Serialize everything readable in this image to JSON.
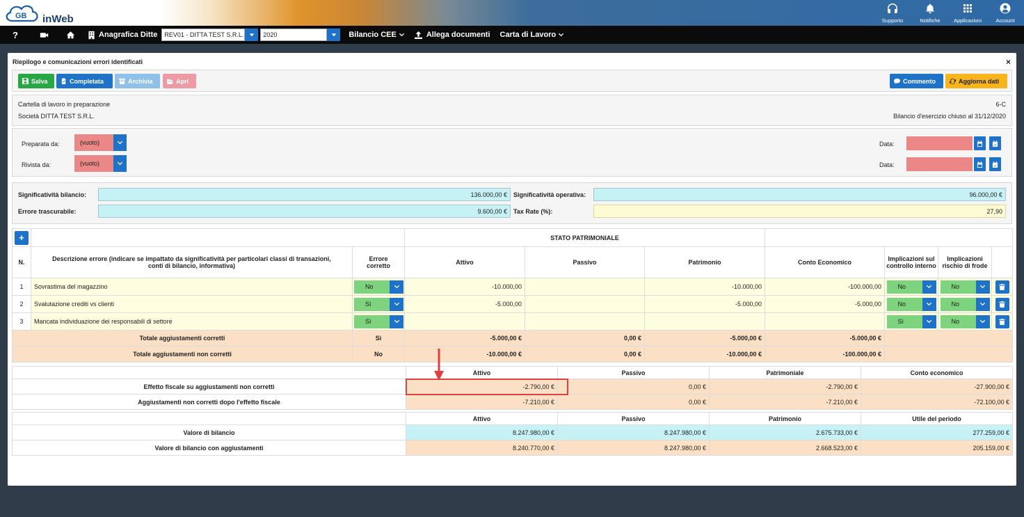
{
  "app": {
    "logo_text": "inWeb",
    "logo_mark": "GB"
  },
  "topbar": {
    "tools": [
      {
        "label": "Supporto",
        "icon": "headset-icon"
      },
      {
        "label": "Notifiche",
        "icon": "bell-icon"
      },
      {
        "label": "Applicazioni",
        "icon": "grid-icon"
      },
      {
        "label": "Account",
        "icon": "account-icon"
      }
    ]
  },
  "nav": {
    "help": "?",
    "anagrafica": "Anagrafica Ditte",
    "company": "REV01 - DITTA TEST S.R.L.",
    "year": "2020",
    "bilancio": "Bilancio CEE",
    "allega": "Allega documenti",
    "carta": "Carta di Lavoro"
  },
  "panel": {
    "title": "Riepilogo e comunicazioni errori identificati",
    "close": "×"
  },
  "toolbar": {
    "salva": "Salva",
    "completata": "Completata",
    "archivia": "Archivia",
    "apri": "Apri",
    "commento": "Commento",
    "aggiorna": "Aggiorna dati"
  },
  "info": {
    "status": "Cartella di lavoro in preparazione",
    "company": "Società DITTA TEST S.R.L.",
    "code": "6-C",
    "bilancio": "Bilancio d'esercizio chiuso al 31/12/2020"
  },
  "signoff": {
    "preparata_label": "Preparata da:",
    "preparata_value": "(vuoto)",
    "rivista_label": "Rivista da:",
    "rivista_value": "(vuoto)",
    "data_label": "Data:"
  },
  "materiality": {
    "sig_bilancio_label": "Significatività bilancio:",
    "sig_bilancio_value": "136.000,00 €",
    "sig_operativa_label": "Significatività operativa:",
    "sig_operativa_value": "96.000,00 €",
    "errore_label": "Errore trascurabile:",
    "errore_value": "9.600,00 €",
    "tax_label": "Tax Rate (%):",
    "tax_value": "27,90"
  },
  "errors_table": {
    "add": "+",
    "group_header": "STATO PATRIMONIALE",
    "headers": {
      "n": "N.",
      "descr": "Descrizione errore (indicare se impattato da significatività per particolari classi di transazioni, conti di bilancio, informativa)",
      "corretto": "Errore corretto",
      "attivo": "Attivo",
      "passivo": "Passivo",
      "patrimonio": "Patrimonio",
      "conto": "Conto Economico",
      "impl_controllo": "Implicazioni sul controllo interno",
      "impl_frode": "Implicazioni rischio di frode"
    },
    "rows": [
      {
        "n": "1",
        "descr": "Sovrastima del magazzino",
        "corretto": "No",
        "attivo": "-10.000,00",
        "passivo": "",
        "patrimonio": "-10.000,00",
        "conto": "-100.000,00",
        "controllo": "No",
        "frode": "No"
      },
      {
        "n": "2",
        "descr": "Svalutazione crediti vs clienti",
        "corretto": "Sì",
        "attivo": "-5.000,00",
        "passivo": "",
        "patrimonio": "-5.000,00",
        "conto": "-5.000,00",
        "controllo": "No",
        "frode": "No"
      },
      {
        "n": "3",
        "descr": "Mancata individuazione dei responsabili di settore",
        "corretto": "Sì",
        "attivo": "",
        "passivo": "",
        "patrimonio": "",
        "conto": "",
        "controllo": "Sì",
        "frode": "No"
      }
    ],
    "totals": [
      {
        "label": "Totale aggiustamenti corretti",
        "flag": "Sì",
        "attivo": "-5.000,00 €",
        "passivo": "0,00 €",
        "patrimonio": "-5.000,00 €",
        "conto": "-5.000,00 €"
      },
      {
        "label": "Totale aggiustamenti non corretti",
        "flag": "No",
        "attivo": "-10.000,00 €",
        "passivo": "0,00 €",
        "patrimonio": "-10.000,00 €",
        "conto": "-100.000,00 €"
      }
    ]
  },
  "fiscal_table": {
    "headers": [
      "Attivo",
      "Passivo",
      "Patrimoniale",
      "Conto economico"
    ],
    "rows": [
      {
        "label": "Effetto fiscale su aggiustamenti non corretti",
        "values": [
          "-2.790,00 €",
          "0,00 €",
          "-2.790,00 €",
          "-27.900,00 €"
        ]
      },
      {
        "label": "Aggiustamenti non corretti dopo l'effetto fiscale",
        "values": [
          "-7.210,00 €",
          "0,00 €",
          "-7.210,00 €",
          "-72.100,00 €"
        ]
      }
    ]
  },
  "balance_table": {
    "headers": [
      "Attivo",
      "Passivo",
      "Patrimonio",
      "Utile del periodo"
    ],
    "rows": [
      {
        "label": "Valore di bilancio",
        "values": [
          "8.247.980,00 €",
          "8.247.980,00 €",
          "2.675.733,00 €",
          "277.259,00 €"
        ]
      },
      {
        "label": "Valore di bilancio con aggiustamenti",
        "values": [
          "8.240.770,00 €",
          "8.247.980,00 €",
          "2.668.523,00 €",
          "205.159,00 €"
        ]
      }
    ]
  },
  "colors": {
    "accent_blue": "#1e72c7",
    "salva_green": "#28a745",
    "empty_red": "#ec8787",
    "highlight_red": "#e04040"
  }
}
